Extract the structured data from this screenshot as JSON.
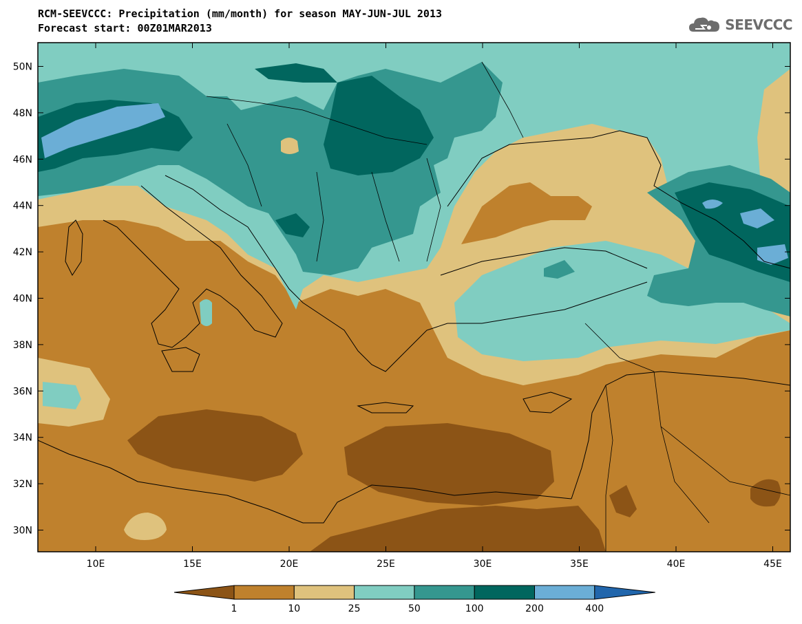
{
  "header": {
    "title_line1": "RCM-SEEVCCC: Precipitation (mm/month) for season MAY-JUN-JUL 2013",
    "title_line2": "Forecast start: 00Z01MAR2013"
  },
  "logo": {
    "text": "SEEVCCC",
    "icon": "cloud-icon"
  },
  "map": {
    "lat_ticks": [
      "50N",
      "48N",
      "46N",
      "44N",
      "42N",
      "40N",
      "38N",
      "36N",
      "34N",
      "32N",
      "30N"
    ],
    "lon_ticks": [
      "10E",
      "15E",
      "20E",
      "25E",
      "30E",
      "35E",
      "40E",
      "45E"
    ]
  },
  "colorbar": {
    "thresholds": [
      "1",
      "10",
      "25",
      "50",
      "100",
      "200",
      "400"
    ],
    "colors": [
      "#8c5416",
      "#bf812d",
      "#dfc27d",
      "#80cdc1",
      "#35978f",
      "#01665e",
      "#6baed6",
      "#2166ac"
    ]
  }
}
